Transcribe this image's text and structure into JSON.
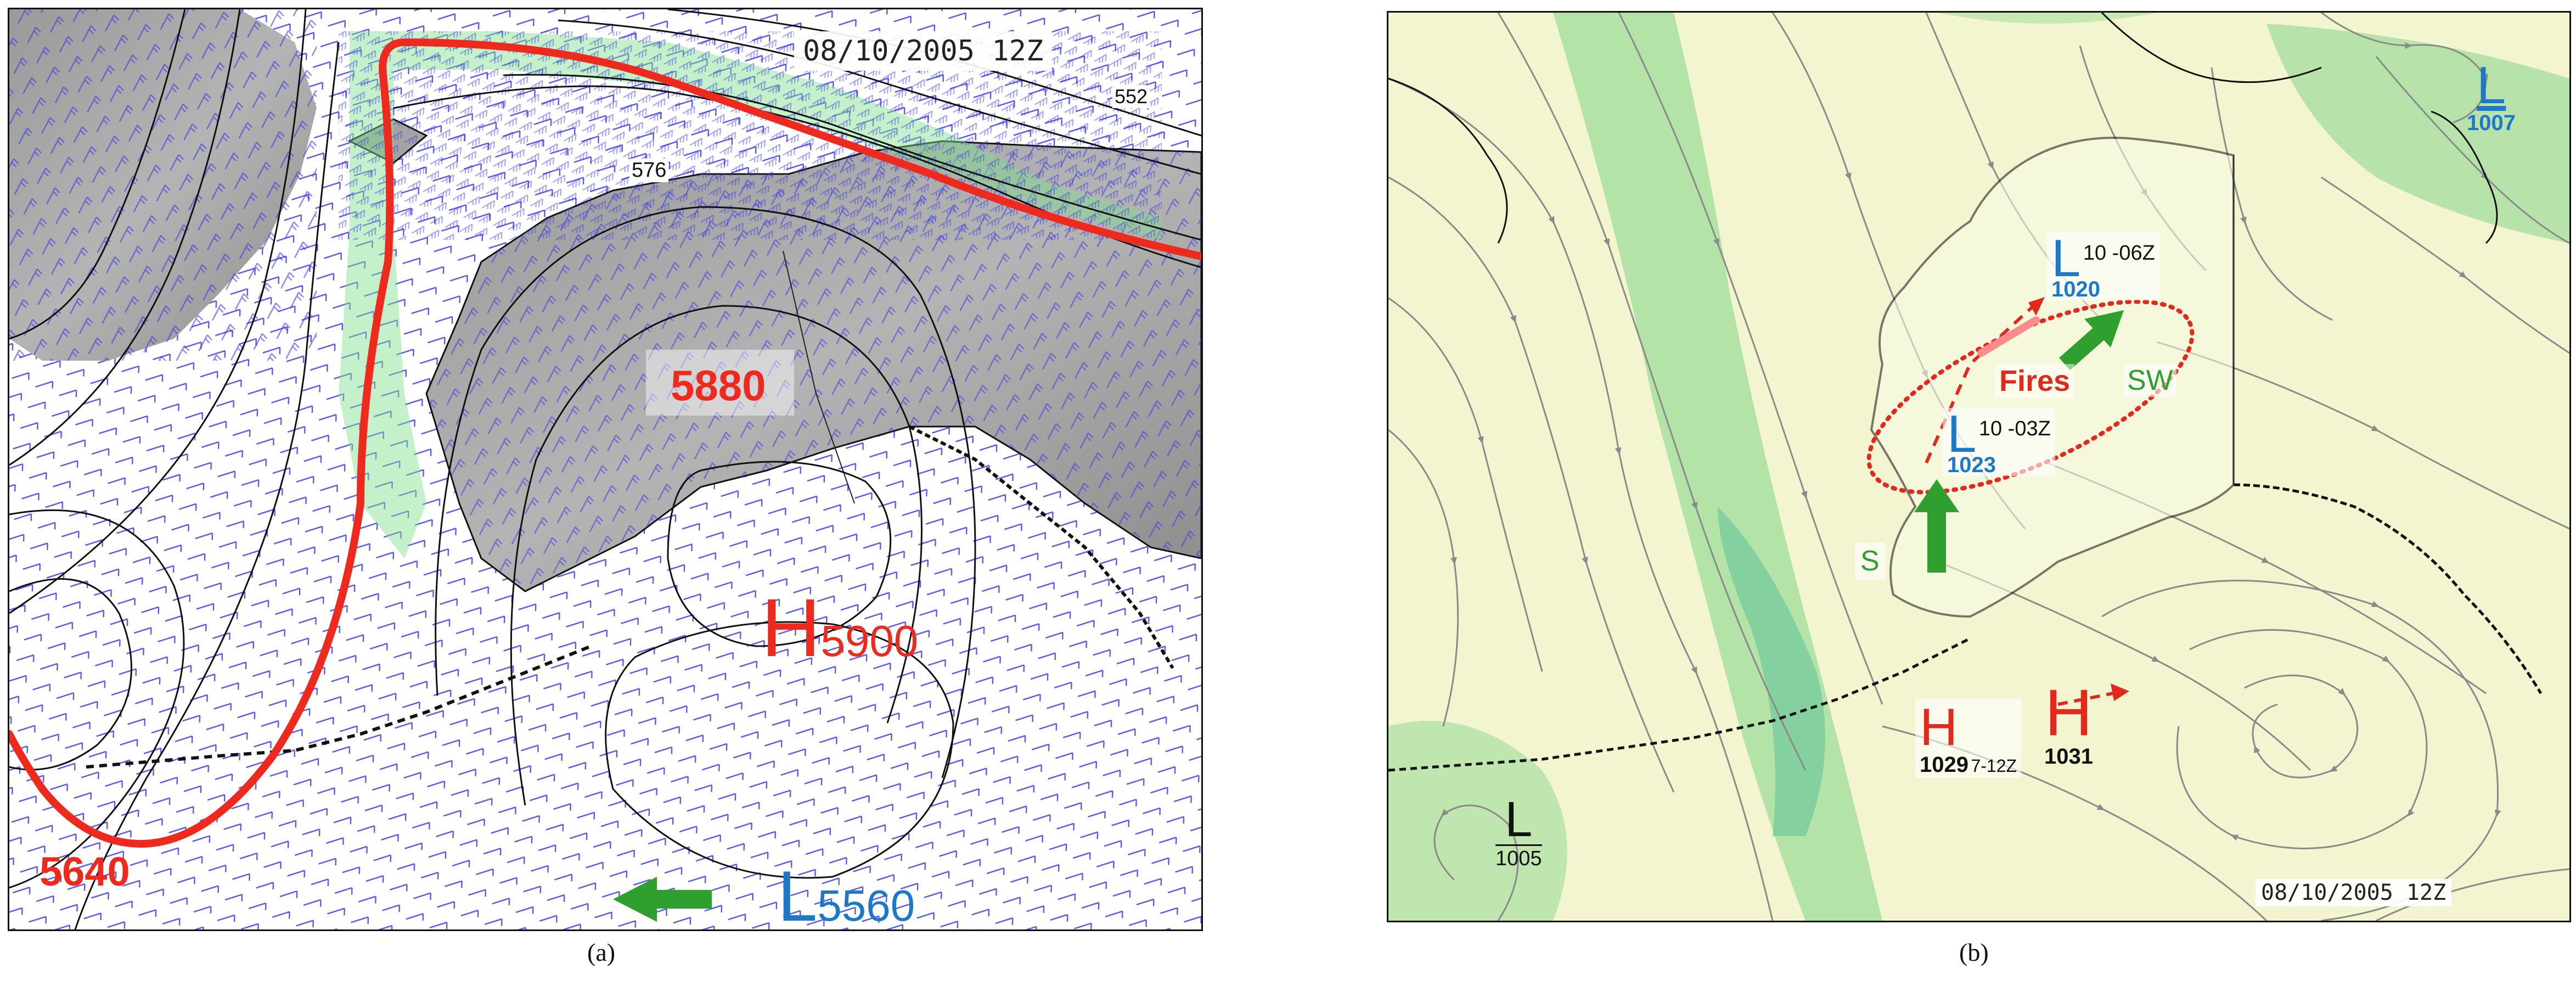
{
  "panel_a": {
    "datetime": "08/10/2005 12Z",
    "contour_labels": [
      "552",
      "576"
    ],
    "high_label": "H",
    "high_value": "5900",
    "low_label": "L",
    "low_value": "5560",
    "height_label_1": "5880",
    "height_label_2": "5640",
    "caption": "(a)",
    "colors": {
      "highlight_contour": "#ee2a1e",
      "low": "#1e78c8",
      "arrow": "#2fa02f",
      "wind_barb": "#3a3ae0",
      "jet_shading": "#7ee08a"
    }
  },
  "panel_b": {
    "datetime": "08/10/2005 12Z",
    "lows": [
      {
        "letter": "L",
        "pressure": "1007"
      },
      {
        "letter": "L",
        "pressure": "1020",
        "time": "10 -06Z"
      },
      {
        "letter": "L",
        "pressure": "1023",
        "time": "10 -03Z"
      },
      {
        "letter": "L",
        "pressure": "1005"
      }
    ],
    "highs": [
      {
        "letter": "H",
        "pressure": "1029",
        "time": "7-12Z"
      },
      {
        "letter": "H",
        "pressure": "1031"
      }
    ],
    "fires_label": "Fires",
    "arrow_labels": {
      "sw": "SW",
      "s": "S"
    },
    "caption": "(b)",
    "colors": {
      "low": "#1e78c8",
      "high": "#e02a1e",
      "fires": "#e02a1e",
      "arrow": "#2fa02f",
      "streamline": "#8a8a8a",
      "shading": "#a8dfa0"
    }
  }
}
